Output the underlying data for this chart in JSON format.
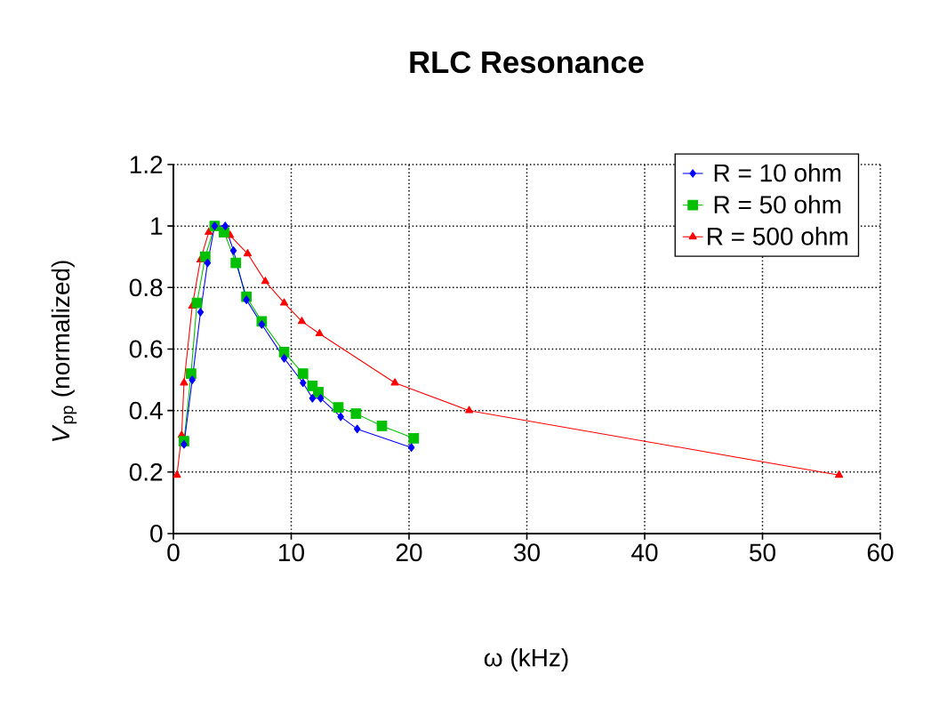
{
  "chart_data": {
    "type": "line",
    "title": "RLC Resonance",
    "xlabel": "ω (kHz)",
    "ylabel": "*V*$_{pp}$ (normalized)",
    "xlim": [
      0,
      60
    ],
    "xticks": [
      0,
      10,
      20,
      30,
      40,
      50,
      60
    ],
    "ylim": [
      0,
      1.2
    ],
    "yticks": [
      0,
      0.2,
      0.4,
      0.6,
      0.8,
      1,
      1.2
    ],
    "grid": true,
    "legend": "top right",
    "line_style": "solid",
    "series": [
      {
        "name": "R = 10 ohm",
        "color": "#0000ff",
        "marker": "diamond",
        "x": [
          0.9,
          1.6,
          2.3,
          2.9,
          3.5,
          4.4,
          5.1,
          6.2,
          7.5,
          9.4,
          11.0,
          11.8,
          12.5,
          14.2,
          15.6,
          20.2
        ],
        "values": [
          0.29,
          0.5,
          0.72,
          0.88,
          1.0,
          1.0,
          0.92,
          0.76,
          0.68,
          0.57,
          0.49,
          0.44,
          0.44,
          0.38,
          0.34,
          0.28
        ]
      },
      {
        "name": "R = 50 ohm",
        "color": "#00c000",
        "marker": "square",
        "x": [
          0.9,
          1.5,
          2.0,
          2.7,
          3.5,
          4.3,
          5.3,
          6.2,
          7.5,
          9.4,
          11.0,
          11.8,
          12.3,
          14.0,
          15.5,
          17.7,
          20.4
        ],
        "values": [
          0.3,
          0.52,
          0.75,
          0.9,
          1.0,
          0.98,
          0.88,
          0.77,
          0.69,
          0.59,
          0.52,
          0.48,
          0.46,
          0.41,
          0.39,
          0.35,
          0.31
        ]
      },
      {
        "name": "R = 500 ohm",
        "color": "#ff0000",
        "marker": "triangle",
        "x": [
          0.3,
          0.7,
          0.9,
          1.6,
          2.3,
          3.0,
          3.7,
          4.8,
          6.3,
          7.8,
          9.4,
          10.9,
          12.4,
          18.8,
          25.1,
          56.5
        ],
        "values": [
          0.19,
          0.32,
          0.49,
          0.74,
          0.89,
          0.98,
          1.0,
          0.97,
          0.91,
          0.82,
          0.75,
          0.69,
          0.65,
          0.49,
          0.4,
          0.19
        ]
      }
    ]
  }
}
